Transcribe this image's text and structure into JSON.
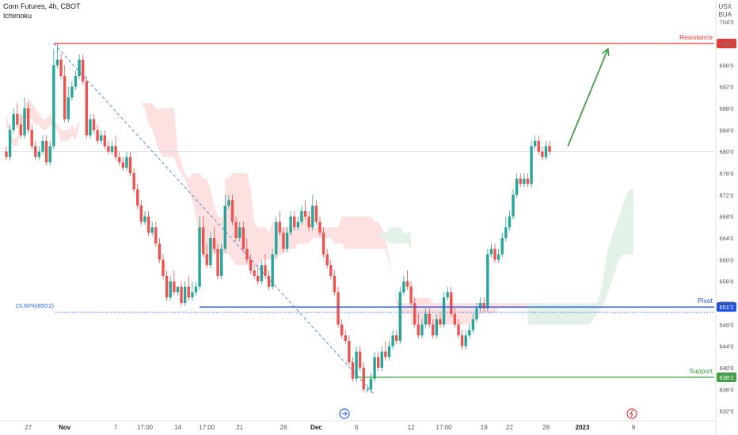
{
  "header": {
    "title": "Corn Futures, 4h, CBOT",
    "indicator": "Ichimoku"
  },
  "axis_units": [
    "USX",
    "BUA"
  ],
  "icons": {
    "top": "arrow-right-circle-icon",
    "bottom": "lightning-circle-icon"
  },
  "colors": {
    "up": "#26a69a",
    "upSolid": "#43a047",
    "down": "#ef5350",
    "resistance": "#e53935",
    "pivot": "#1e53e5",
    "support": "#43a047",
    "fib": "#2962ff",
    "cloudBear": "#fde0e0",
    "cloudBull": "#e3f2e6",
    "trend": "#5b8fd9",
    "arrow": "#43a047"
  },
  "chart_data": {
    "type": "candlestick",
    "title": "Corn Futures, 4h, CBOT",
    "ylim": [
      630.5,
      706
    ],
    "y_ticks": [
      "704'0",
      "700'0",
      "696'0",
      "692'0",
      "688'0",
      "684'0",
      "680'0",
      "676'0",
      "672'0",
      "668'0",
      "664'0",
      "660'0",
      "656'0",
      "652'0",
      "648'0",
      "644'0",
      "640'0",
      "636'0",
      "632'0"
    ],
    "y_tick_values": [
      704,
      700,
      696,
      692,
      688,
      684,
      680,
      676,
      672,
      668,
      664,
      660,
      656,
      652,
      648,
      644,
      640,
      636,
      632
    ],
    "x_ticks": [
      "27",
      "Nov",
      "7",
      "17:00",
      "14",
      "17:00",
      "21",
      "28",
      "Dec",
      "6",
      "12",
      "17:00",
      "19",
      "22",
      "28",
      "2023",
      "9"
    ],
    "x_tick_index": [
      6,
      16,
      30,
      38,
      47,
      55,
      64,
      76,
      85,
      96,
      111,
      120,
      131,
      138,
      148,
      158,
      172
    ],
    "last_index": 172,
    "levels": [
      {
        "name": "Resistance",
        "value": 700,
        "label": "700'0",
        "start_index": 13
      },
      {
        "name": "Pivot",
        "value": 651.25,
        "label": "651'2",
        "start_index": 53
      },
      {
        "name": "Support",
        "value": 638.25,
        "label": "638'2",
        "start_index": 96
      }
    ],
    "fib": {
      "label": "23.60%(650'2)",
      "value": 650.25
    },
    "trendline": {
      "from": {
        "index": 13,
        "value": 700
      },
      "to": {
        "index": 101,
        "value": 635
      }
    },
    "projection": {
      "from": {
        "index": 154,
        "value": 681
      },
      "to": {
        "index": 165,
        "value": 699
      }
    },
    "candles": [
      {
        "o": 680,
        "h": 681,
        "c": 679
      },
      {
        "o": 679,
        "h": 685,
        "c": 684
      },
      {
        "o": 684,
        "h": 688,
        "c": 687
      },
      {
        "o": 687,
        "h": 689,
        "c": 685
      },
      {
        "o": 685,
        "h": 687,
        "c": 683
      },
      {
        "o": 683,
        "h": 690,
        "c": 688
      },
      {
        "o": 688,
        "h": 689,
        "c": 684
      },
      {
        "o": 684,
        "h": 685,
        "c": 681
      },
      {
        "o": 681,
        "h": 682,
        "c": 679
      },
      {
        "o": 679,
        "h": 681,
        "c": 680
      },
      {
        "o": 680,
        "h": 683,
        "c": 682
      },
      {
        "o": 682,
        "h": 683,
        "c": 678
      },
      {
        "o": 678,
        "h": 682,
        "c": 681
      },
      {
        "o": 681,
        "h": 699,
        "c": 696
      },
      {
        "o": 696,
        "h": 700,
        "c": 697
      },
      {
        "o": 697,
        "h": 698,
        "c": 694
      },
      {
        "o": 694,
        "h": 696,
        "c": 686
      },
      {
        "o": 686,
        "h": 692,
        "c": 690
      },
      {
        "o": 690,
        "h": 693,
        "c": 692
      },
      {
        "o": 692,
        "h": 695,
        "c": 694
      },
      {
        "o": 694,
        "h": 698,
        "c": 697
      },
      {
        "o": 697,
        "h": 698,
        "c": 693
      },
      {
        "o": 693,
        "h": 694,
        "c": 683
      },
      {
        "o": 683,
        "h": 687,
        "c": 686
      },
      {
        "o": 686,
        "h": 687,
        "c": 684
      },
      {
        "o": 684,
        "h": 685,
        "c": 682
      },
      {
        "o": 682,
        "h": 684,
        "c": 683
      },
      {
        "o": 683,
        "h": 684,
        "c": 681
      },
      {
        "o": 681,
        "h": 682,
        "c": 680
      },
      {
        "o": 680,
        "h": 682,
        "c": 681
      },
      {
        "o": 681,
        "h": 683,
        "c": 679
      },
      {
        "o": 679,
        "h": 680,
        "c": 678
      },
      {
        "o": 678,
        "h": 679,
        "c": 677
      },
      {
        "o": 677,
        "h": 680,
        "c": 679
      },
      {
        "o": 679,
        "h": 680,
        "c": 676
      },
      {
        "o": 676,
        "h": 677,
        "c": 673
      },
      {
        "o": 673,
        "h": 674,
        "c": 670
      },
      {
        "o": 670,
        "h": 671,
        "c": 667
      },
      {
        "o": 667,
        "h": 669,
        "c": 668
      },
      {
        "o": 668,
        "h": 669,
        "c": 665
      },
      {
        "o": 665,
        "h": 667,
        "c": 666
      },
      {
        "o": 666,
        "h": 667,
        "c": 663
      },
      {
        "o": 663,
        "h": 664,
        "c": 660
      },
      {
        "o": 660,
        "h": 661,
        "c": 657
      },
      {
        "o": 657,
        "h": 658,
        "c": 653
      },
      {
        "o": 653,
        "h": 657,
        "c": 656
      },
      {
        "o": 656,
        "h": 658,
        "c": 654
      },
      {
        "o": 654,
        "h": 655,
        "c": 655
      },
      {
        "o": 655,
        "h": 656,
        "c": 652
      },
      {
        "o": 652,
        "h": 656,
        "c": 655
      },
      {
        "o": 655,
        "h": 657,
        "c": 653
      },
      {
        "o": 653,
        "h": 656,
        "c": 654
      },
      {
        "o": 654,
        "h": 656,
        "c": 655
      },
      {
        "o": 655,
        "h": 668,
        "c": 666
      },
      {
        "o": 666,
        "h": 668,
        "c": 661
      },
      {
        "o": 661,
        "h": 663,
        "c": 659
      },
      {
        "o": 659,
        "h": 665,
        "c": 664
      },
      {
        "o": 664,
        "h": 666,
        "c": 662
      },
      {
        "o": 662,
        "h": 663,
        "c": 657
      },
      {
        "o": 657,
        "h": 663,
        "c": 662
      },
      {
        "o": 662,
        "h": 672,
        "c": 670
      },
      {
        "o": 670,
        "h": 672,
        "c": 671
      },
      {
        "o": 671,
        "h": 672,
        "c": 667
      },
      {
        "o": 667,
        "h": 668,
        "c": 664
      },
      {
        "o": 664,
        "h": 667,
        "c": 666
      },
      {
        "o": 666,
        "h": 667,
        "c": 662
      },
      {
        "o": 662,
        "h": 664,
        "c": 660
      },
      {
        "o": 660,
        "h": 661,
        "c": 658
      },
      {
        "o": 658,
        "h": 659,
        "c": 657
      },
      {
        "o": 657,
        "h": 659,
        "c": 656
      },
      {
        "o": 656,
        "h": 660,
        "c": 659
      },
      {
        "o": 659,
        "h": 661,
        "c": 657
      },
      {
        "o": 657,
        "h": 658,
        "c": 655
      },
      {
        "o": 655,
        "h": 662,
        "c": 661
      },
      {
        "o": 661,
        "h": 668,
        "c": 667
      },
      {
        "o": 667,
        "h": 669,
        "c": 665
      },
      {
        "o": 665,
        "h": 666,
        "c": 662
      },
      {
        "o": 662,
        "h": 666,
        "c": 665
      },
      {
        "o": 665,
        "h": 669,
        "c": 668
      },
      {
        "o": 668,
        "h": 669,
        "c": 666
      },
      {
        "o": 666,
        "h": 668,
        "c": 667
      },
      {
        "o": 667,
        "h": 670,
        "c": 669
      },
      {
        "o": 669,
        "h": 671,
        "c": 668
      },
      {
        "o": 668,
        "h": 669,
        "c": 666
      },
      {
        "o": 666,
        "h": 672,
        "c": 670
      },
      {
        "o": 670,
        "h": 671,
        "c": 667
      },
      {
        "o": 667,
        "h": 668,
        "c": 665
      },
      {
        "o": 665,
        "h": 666,
        "c": 661
      },
      {
        "o": 661,
        "h": 662,
        "c": 659
      },
      {
        "o": 659,
        "h": 660,
        "c": 657
      },
      {
        "o": 657,
        "h": 658,
        "c": 654
      },
      {
        "o": 654,
        "h": 655,
        "c": 648
      },
      {
        "o": 648,
        "h": 649,
        "c": 646
      },
      {
        "o": 646,
        "h": 647,
        "c": 645
      },
      {
        "o": 645,
        "h": 646,
        "c": 641
      },
      {
        "o": 641,
        "h": 642,
        "c": 638
      },
      {
        "o": 638,
        "h": 644,
        "c": 643
      },
      {
        "o": 643,
        "h": 644,
        "c": 640
      },
      {
        "o": 640,
        "h": 641,
        "c": 636
      },
      {
        "o": 636,
        "h": 637,
        "c": 636
      },
      {
        "o": 636,
        "h": 639,
        "c": 638
      },
      {
        "o": 638,
        "h": 643,
        "c": 642
      },
      {
        "o": 642,
        "h": 643,
        "c": 640
      },
      {
        "o": 640,
        "h": 644,
        "c": 643
      },
      {
        "o": 643,
        "h": 645,
        "c": 642
      },
      {
        "o": 642,
        "h": 645,
        "c": 644
      },
      {
        "o": 644,
        "h": 647,
        "c": 646
      },
      {
        "o": 646,
        "h": 647,
        "c": 645
      },
      {
        "o": 645,
        "h": 655,
        "c": 654
      },
      {
        "o": 654,
        "h": 657,
        "c": 656
      },
      {
        "o": 656,
        "h": 658,
        "c": 655
      },
      {
        "o": 655,
        "h": 656,
        "c": 652
      },
      {
        "o": 652,
        "h": 653,
        "c": 648
      },
      {
        "o": 648,
        "h": 650,
        "c": 646
      },
      {
        "o": 646,
        "h": 649,
        "c": 648
      },
      {
        "o": 648,
        "h": 651,
        "c": 650
      },
      {
        "o": 650,
        "h": 651,
        "c": 648
      },
      {
        "o": 648,
        "h": 649,
        "c": 646
      },
      {
        "o": 646,
        "h": 650,
        "c": 649
      },
      {
        "o": 649,
        "h": 650,
        "c": 648
      },
      {
        "o": 648,
        "h": 654,
        "c": 653
      },
      {
        "o": 653,
        "h": 655,
        "c": 654
      },
      {
        "o": 654,
        "h": 655,
        "c": 650
      },
      {
        "o": 650,
        "h": 651,
        "c": 648
      },
      {
        "o": 648,
        "h": 649,
        "c": 646
      },
      {
        "o": 646,
        "h": 647,
        "c": 644
      },
      {
        "o": 644,
        "h": 647,
        "c": 646
      },
      {
        "o": 646,
        "h": 648,
        "c": 647
      },
      {
        "o": 647,
        "h": 650,
        "c": 649
      },
      {
        "o": 649,
        "h": 652,
        "c": 651
      },
      {
        "o": 651,
        "h": 653,
        "c": 652
      },
      {
        "o": 652,
        "h": 653,
        "c": 651
      },
      {
        "o": 651,
        "h": 662,
        "c": 661
      },
      {
        "o": 661,
        "h": 663,
        "c": 662
      },
      {
        "o": 662,
        "h": 663,
        "c": 660
      },
      {
        "o": 660,
        "h": 662,
        "c": 661
      },
      {
        "o": 661,
        "h": 665,
        "c": 664
      },
      {
        "o": 664,
        "h": 668,
        "c": 666
      },
      {
        "o": 666,
        "h": 669,
        "c": 668
      },
      {
        "o": 668,
        "h": 673,
        "c": 672
      },
      {
        "o": 672,
        "h": 676,
        "c": 675
      },
      {
        "o": 675,
        "h": 676,
        "c": 674
      },
      {
        "o": 674,
        "h": 676,
        "c": 675
      },
      {
        "o": 675,
        "h": 676,
        "c": 674
      },
      {
        "o": 674,
        "h": 682,
        "c": 681
      },
      {
        "o": 681,
        "h": 683,
        "c": 682
      },
      {
        "o": 682,
        "h": 683,
        "c": 680
      },
      {
        "o": 680,
        "h": 681,
        "c": 679
      },
      {
        "o": 679,
        "h": 682,
        "c": 681
      },
      {
        "o": 681,
        "h": 682,
        "c": 680
      }
    ],
    "cloud": [
      {
        "from": 0,
        "to": 20,
        "a": [
          687,
          684,
          682,
          683,
          686,
          688,
          690,
          689,
          688,
          687,
          686,
          686,
          687,
          686,
          685,
          684,
          684,
          684,
          685,
          684,
          686
        ],
        "b": [
          685,
          682,
          681,
          681,
          684,
          686,
          686,
          686,
          685,
          685,
          684,
          684,
          685,
          684,
          684,
          682,
          682,
          682,
          683,
          682,
          685
        ]
      },
      {
        "from": 37,
        "to": 60,
        "a": [
          689,
          689,
          689,
          689,
          688,
          688,
          688,
          688,
          688,
          688,
          680,
          678,
          676,
          675,
          676,
          676,
          676,
          675,
          675,
          673,
          670,
          668,
          668,
          668
        ],
        "b": [
          689,
          688,
          685,
          684,
          682,
          680,
          679,
          679,
          679,
          679,
          677,
          676,
          675,
          673,
          671,
          668,
          664,
          661,
          660,
          660,
          661,
          661,
          661,
          661
        ]
      },
      {
        "from": 60,
        "to": 86,
        "a": [
          675,
          675,
          676,
          676,
          676,
          676,
          676,
          673,
          667,
          666,
          666,
          666,
          665,
          667,
          667,
          666,
          666,
          666,
          666,
          666,
          666,
          668,
          668,
          667,
          666,
          666,
          666
        ],
        "b": [
          661,
          661,
          660,
          659,
          659,
          659,
          659,
          659,
          659,
          659,
          660,
          660,
          660,
          660,
          660,
          661,
          661,
          662,
          662,
          662,
          663,
          663,
          663,
          663,
          664,
          664,
          664
        ]
      },
      {
        "from": 86,
        "to": 111,
        "a": [
          666,
          666,
          666,
          666,
          666,
          666,
          668,
          668,
          668,
          668,
          668,
          668,
          668,
          668,
          668,
          667,
          667,
          666,
          664,
          660,
          656,
          653,
          652,
          652,
          652,
          652
        ],
        "b": [
          664,
          664,
          664,
          664,
          663,
          663,
          663,
          662,
          662,
          662,
          662,
          662,
          662,
          662,
          662,
          662,
          662,
          662,
          662,
          659,
          656,
          652,
          650,
          650,
          650,
          650
        ]
      },
      {
        "from": 111,
        "to": 143,
        "a": [
          652,
          653,
          653,
          653,
          653,
          653,
          652,
          652,
          652,
          652,
          652,
          652,
          652,
          652,
          652,
          652,
          652,
          652,
          652,
          652,
          652,
          652,
          652,
          652,
          652,
          652,
          652,
          652,
          652,
          652,
          652,
          652,
          652
        ],
        "b": [
          648,
          648,
          648,
          648,
          648,
          648,
          648,
          648,
          648,
          648,
          648,
          648,
          648,
          648,
          648,
          648,
          648,
          648,
          649,
          650,
          650,
          650,
          650,
          650,
          651,
          651,
          651,
          651,
          651,
          651,
          651,
          651,
          651
        ]
      }
    ],
    "cloud_bull": [
      {
        "from": 102,
        "to": 111,
        "a": [
          665,
          665,
          665,
          666,
          666,
          666,
          666,
          665,
          665,
          665
        ],
        "b": [
          665,
          664,
          664,
          663,
          663,
          663,
          663,
          663,
          663,
          662
        ]
      },
      {
        "from": 143,
        "to": 172,
        "a": [
          652,
          652,
          652,
          652,
          652,
          652,
          652,
          652,
          652,
          652,
          652,
          652,
          652,
          652,
          652,
          652,
          652,
          652,
          652,
          652,
          654,
          658,
          662,
          664,
          666,
          668,
          670,
          672,
          673,
          673
        ],
        "b": [
          648,
          648,
          648,
          648,
          648,
          648,
          648,
          648,
          648,
          648,
          648,
          648,
          648,
          648,
          648,
          648,
          648,
          648,
          649,
          650,
          651,
          652,
          654,
          656,
          658,
          660,
          661,
          661,
          661,
          661
        ]
      }
    ]
  }
}
